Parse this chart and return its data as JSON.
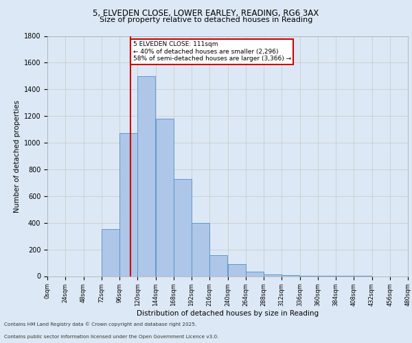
{
  "title_line1": "5, ELVEDEN CLOSE, LOWER EARLEY, READING, RG6 3AX",
  "title_line2": "Size of property relative to detached houses in Reading",
  "xlabel": "Distribution of detached houses by size in Reading",
  "ylabel": "Number of detached properties",
  "annotation_line1": "5 ELVEDEN CLOSE: 111sqm",
  "annotation_line2": "← 40% of detached houses are smaller (2,296)",
  "annotation_line3": "58% of semi-detached houses are larger (3,366) →",
  "bar_edges": [
    0,
    24,
    48,
    72,
    96,
    120,
    144,
    168,
    192,
    216,
    240,
    264,
    288,
    312,
    336,
    360,
    384,
    408,
    432,
    456,
    480
  ],
  "bar_heights": [
    0,
    0,
    0,
    350,
    1070,
    1500,
    1180,
    730,
    400,
    155,
    90,
    35,
    15,
    8,
    4,
    2,
    1,
    1,
    0,
    0
  ],
  "bar_color": "#aec6e8",
  "bar_edge_color": "#5090c8",
  "vline_x": 111,
  "vline_color": "#cc0000",
  "ylim": [
    0,
    1800
  ],
  "yticks": [
    0,
    200,
    400,
    600,
    800,
    1000,
    1200,
    1400,
    1600,
    1800
  ],
  "xtick_labels": [
    "0sqm",
    "24sqm",
    "48sqm",
    "72sqm",
    "96sqm",
    "120sqm",
    "144sqm",
    "168sqm",
    "192sqm",
    "216sqm",
    "240sqm",
    "264sqm",
    "288sqm",
    "312sqm",
    "336sqm",
    "360sqm",
    "384sqm",
    "408sqm",
    "432sqm",
    "456sqm",
    "480sqm"
  ],
  "grid_color": "#cccccc",
  "background_color": "#dce8f5",
  "plot_bg_color": "#dce8f5",
  "annotation_box_color": "#ffffff",
  "annotation_box_edge": "#cc0000",
  "footer_line1": "Contains HM Land Registry data © Crown copyright and database right 2025.",
  "footer_line2": "Contains public sector information licensed under the Open Government Licence v3.0."
}
